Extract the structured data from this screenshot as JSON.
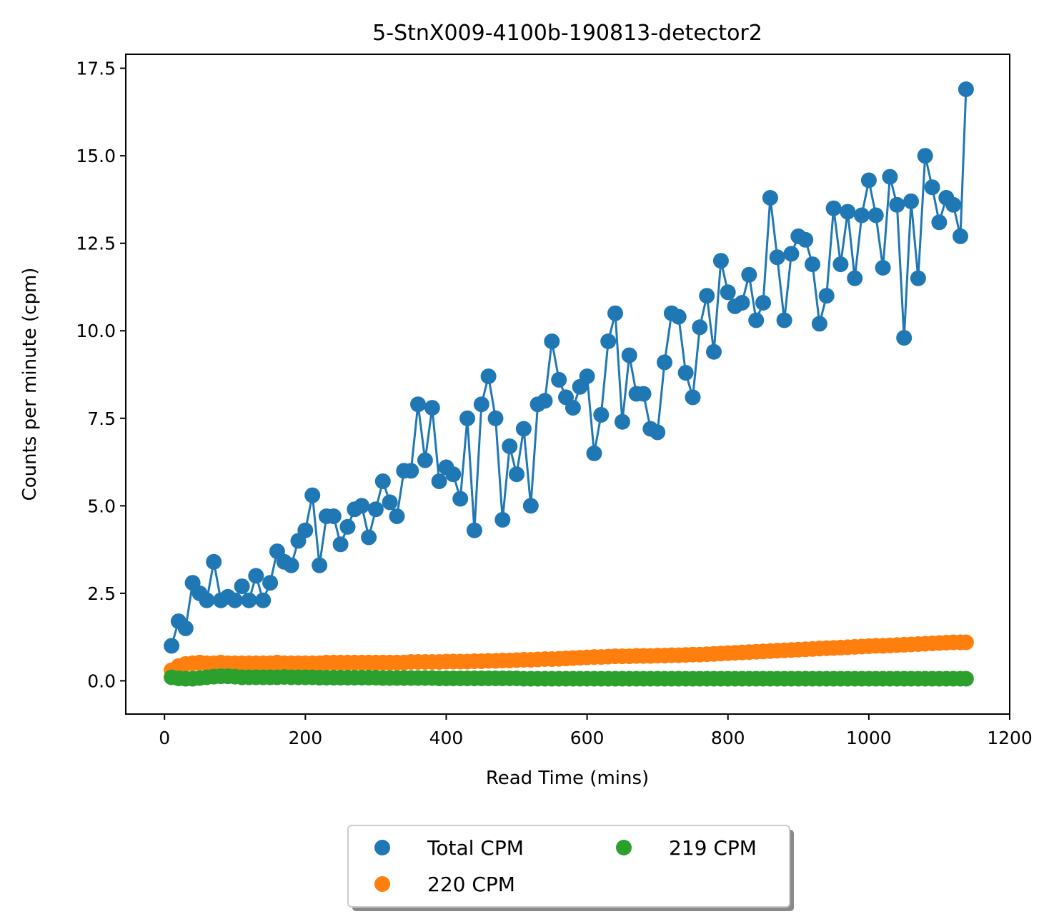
{
  "chart_data": {
    "type": "line",
    "title": "5-StnX009-4100b-190813-detector2",
    "xlabel": "Read Time (mins)",
    "ylabel": "Counts per minute (cpm)",
    "xlim": [
      -55,
      1200
    ],
    "ylim": [
      -0.95,
      17.9
    ],
    "xticks": [
      0,
      200,
      400,
      600,
      800,
      1000,
      1200
    ],
    "xtick_labels": [
      "0",
      "200",
      "400",
      "600",
      "800",
      "1000",
      "1200"
    ],
    "yticks": [
      0.0,
      2.5,
      5.0,
      7.5,
      10.0,
      12.5,
      15.0,
      17.5
    ],
    "ytick_labels": [
      "0.0",
      "2.5",
      "5.0",
      "7.5",
      "10.0",
      "12.5",
      "15.0",
      "17.5"
    ],
    "grid": false,
    "legend": {
      "placement": "below-center",
      "columns": 2
    },
    "x": [
      10,
      20,
      30,
      40,
      50,
      60,
      70,
      80,
      90,
      100,
      110,
      120,
      130,
      140,
      150,
      160,
      170,
      180,
      190,
      200,
      210,
      220,
      230,
      240,
      250,
      260,
      270,
      280,
      290,
      300,
      310,
      320,
      330,
      340,
      350,
      360,
      370,
      380,
      390,
      400,
      410,
      420,
      430,
      440,
      450,
      460,
      470,
      480,
      490,
      500,
      510,
      520,
      530,
      540,
      550,
      560,
      570,
      580,
      590,
      600,
      610,
      620,
      630,
      640,
      650,
      660,
      670,
      680,
      690,
      700,
      710,
      720,
      730,
      740,
      750,
      760,
      770,
      780,
      790,
      800,
      810,
      820,
      830,
      840,
      850,
      860,
      870,
      880,
      890,
      900,
      910,
      920,
      930,
      940,
      950,
      960,
      970,
      980,
      990,
      1000,
      1010,
      1020,
      1030,
      1040,
      1050,
      1060,
      1070,
      1080,
      1090,
      1100,
      1110,
      1120,
      1130,
      1138
    ],
    "series": [
      {
        "name": "Total CPM",
        "color": "#1f77b4",
        "style": "line-markers",
        "values": [
          1.0,
          1.7,
          1.5,
          2.8,
          2.5,
          2.3,
          3.4,
          2.3,
          2.4,
          2.3,
          2.7,
          2.3,
          3.0,
          2.3,
          2.8,
          3.7,
          3.4,
          3.3,
          4.0,
          4.3,
          5.3,
          3.3,
          4.7,
          4.7,
          3.9,
          4.4,
          4.9,
          5.0,
          4.1,
          4.9,
          5.7,
          5.1,
          4.7,
          6.0,
          6.0,
          7.9,
          6.3,
          7.8,
          5.7,
          6.1,
          5.9,
          5.2,
          7.5,
          4.3,
          7.9,
          8.7,
          7.5,
          4.6,
          6.7,
          5.9,
          7.2,
          5.0,
          7.9,
          8.0,
          9.7,
          8.6,
          8.1,
          7.8,
          8.4,
          8.7,
          6.5,
          7.6,
          9.7,
          10.5,
          7.4,
          9.3,
          8.2,
          8.2,
          7.2,
          7.1,
          9.1,
          10.5,
          10.4,
          8.8,
          8.1,
          10.1,
          11.0,
          9.4,
          12.0,
          11.1,
          10.7,
          10.8,
          11.6,
          10.3,
          10.8,
          13.8,
          12.1,
          10.3,
          12.2,
          12.7,
          12.6,
          11.9,
          10.2,
          11.0,
          13.5,
          11.9,
          13.4,
          11.5,
          13.3,
          14.3,
          13.3,
          11.8,
          14.4,
          13.6,
          9.8,
          13.7,
          11.5,
          15.0,
          14.1,
          13.1,
          13.8,
          13.6,
          12.7,
          16.9
        ]
      },
      {
        "name": "220 CPM",
        "color": "#ff7f0e",
        "style": "markers",
        "values": [
          0.3,
          0.42,
          0.48,
          0.5,
          0.52,
          0.5,
          0.5,
          0.52,
          0.5,
          0.5,
          0.5,
          0.5,
          0.5,
          0.5,
          0.5,
          0.52,
          0.5,
          0.5,
          0.5,
          0.5,
          0.5,
          0.5,
          0.52,
          0.52,
          0.52,
          0.52,
          0.52,
          0.52,
          0.52,
          0.52,
          0.52,
          0.52,
          0.52,
          0.52,
          0.54,
          0.54,
          0.54,
          0.54,
          0.54,
          0.55,
          0.55,
          0.55,
          0.55,
          0.56,
          0.56,
          0.57,
          0.57,
          0.58,
          0.58,
          0.59,
          0.6,
          0.6,
          0.61,
          0.62,
          0.62,
          0.63,
          0.64,
          0.65,
          0.66,
          0.67,
          0.68,
          0.68,
          0.69,
          0.7,
          0.7,
          0.7,
          0.71,
          0.71,
          0.71,
          0.72,
          0.72,
          0.73,
          0.73,
          0.74,
          0.75,
          0.75,
          0.76,
          0.77,
          0.78,
          0.79,
          0.8,
          0.81,
          0.82,
          0.83,
          0.84,
          0.85,
          0.86,
          0.87,
          0.88,
          0.89,
          0.9,
          0.91,
          0.92,
          0.93,
          0.94,
          0.95,
          0.96,
          0.97,
          0.98,
          0.99,
          1.0,
          1.0,
          1.01,
          1.02,
          1.03,
          1.04,
          1.05,
          1.06,
          1.07,
          1.08,
          1.09,
          1.1,
          1.1,
          1.1
        ]
      },
      {
        "name": "219 CPM",
        "color": "#2ca02c",
        "style": "markers",
        "values": [
          0.1,
          0.07,
          0.06,
          0.06,
          0.08,
          0.1,
          0.12,
          0.13,
          0.13,
          0.12,
          0.1,
          0.1,
          0.1,
          0.1,
          0.1,
          0.1,
          0.11,
          0.1,
          0.1,
          0.1,
          0.1,
          0.09,
          0.09,
          0.09,
          0.09,
          0.09,
          0.09,
          0.09,
          0.09,
          0.09,
          0.08,
          0.08,
          0.08,
          0.08,
          0.08,
          0.08,
          0.08,
          0.08,
          0.07,
          0.07,
          0.07,
          0.07,
          0.07,
          0.07,
          0.07,
          0.07,
          0.07,
          0.07,
          0.07,
          0.07,
          0.06,
          0.06,
          0.06,
          0.06,
          0.06,
          0.06,
          0.06,
          0.06,
          0.06,
          0.06,
          0.06,
          0.06,
          0.06,
          0.06,
          0.06,
          0.06,
          0.06,
          0.06,
          0.06,
          0.06,
          0.06,
          0.06,
          0.06,
          0.06,
          0.06,
          0.06,
          0.06,
          0.06,
          0.06,
          0.06,
          0.06,
          0.06,
          0.06,
          0.06,
          0.06,
          0.06,
          0.06,
          0.06,
          0.06,
          0.06,
          0.06,
          0.06,
          0.06,
          0.06,
          0.06,
          0.06,
          0.06,
          0.06,
          0.06,
          0.06,
          0.06,
          0.06,
          0.06,
          0.06,
          0.06,
          0.06,
          0.06,
          0.06,
          0.06,
          0.06,
          0.06,
          0.06,
          0.06,
          0.06
        ]
      }
    ]
  }
}
